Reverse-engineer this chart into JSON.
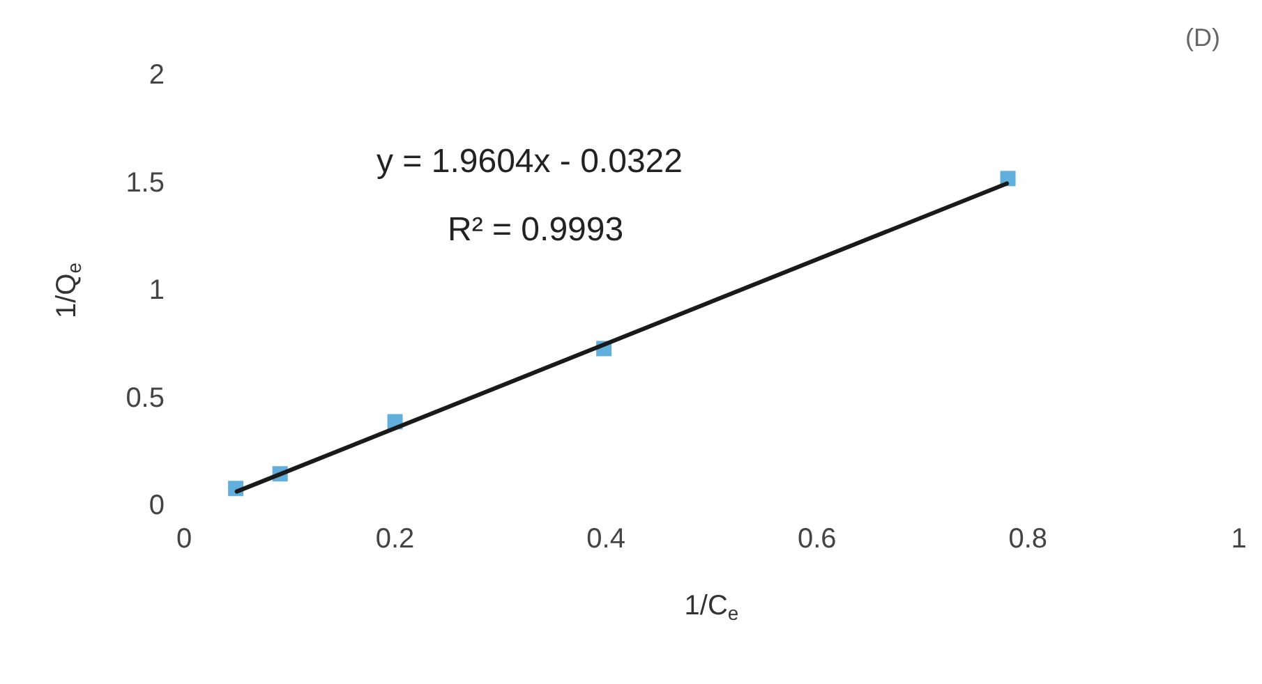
{
  "chart_data": {
    "type": "scatter",
    "xlabel": "1/C$_{e}$",
    "ylabel": "1/Q$_{e}$",
    "annotations": [
      "y = 1.9604x - 0.0322",
      "R² = 0.9993",
      "(D)"
    ],
    "xlim": [
      0,
      1
    ],
    "xticks": [
      0,
      0.2,
      0.4,
      0.6,
      0.8,
      1
    ],
    "ylim": [
      0,
      2
    ],
    "yticks": [
      0,
      0.5,
      1,
      1.5,
      2
    ],
    "grid": false,
    "marker": "square",
    "series": [
      {
        "color": "#3a9bd5",
        "x": [
          0.049,
          0.091,
          0.2,
          0.398,
          0.781
        ],
        "values": [
          0.08,
          0.148,
          0.39,
          0.73,
          1.52
        ]
      },
      {
        "type": "line",
        "color": "#1a1a1a",
        "marker": "none",
        "x": [
          0.05,
          0.78
        ],
        "values": [
          0.066,
          1.497
        ]
      }
    ]
  }
}
